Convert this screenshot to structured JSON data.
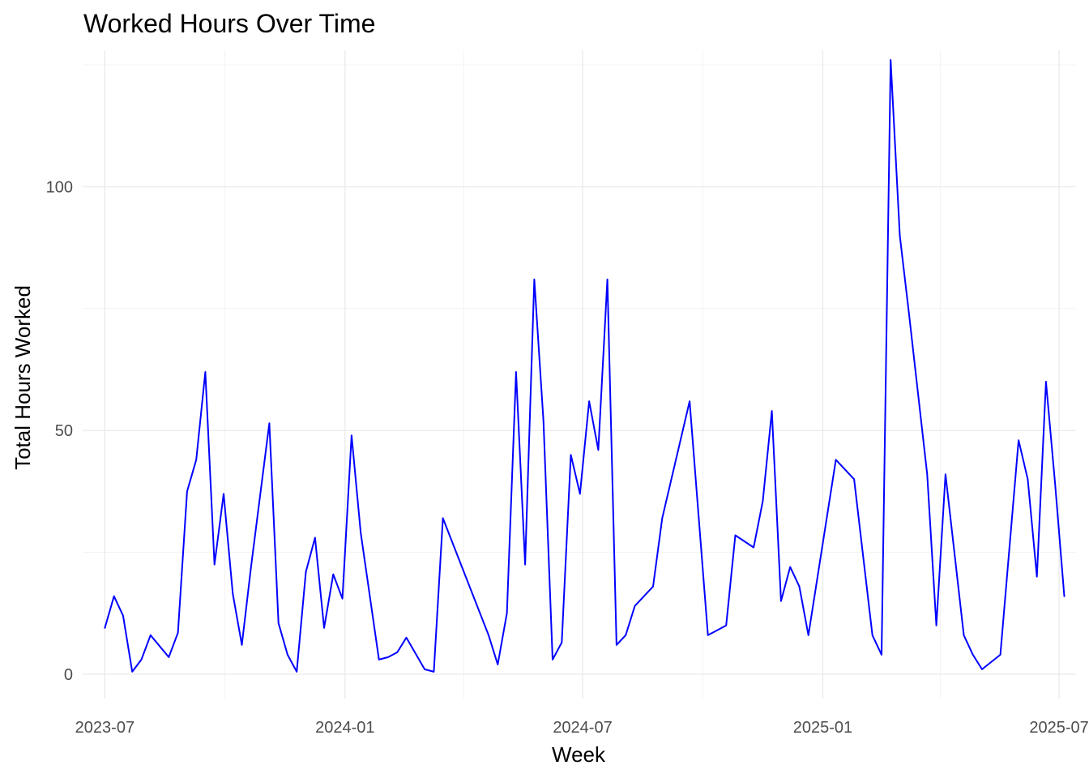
{
  "chart_data": {
    "type": "line",
    "title": "Worked Hours Over Time",
    "xlabel": "Week",
    "ylabel": "Total Hours Worked",
    "x_axis_type": "date",
    "xlim": [
      "2023-06-14",
      "2025-07-14"
    ],
    "ylim": [
      -5,
      128
    ],
    "x_ticks": [
      {
        "date": "2023-07-01",
        "label": "2023-07"
      },
      {
        "date": "2024-01-01",
        "label": "2024-01"
      },
      {
        "date": "2024-07-01",
        "label": "2024-07"
      },
      {
        "date": "2025-01-01",
        "label": "2025-01"
      },
      {
        "date": "2025-07-01",
        "label": "2025-07"
      }
    ],
    "x_minor_ticks": [
      "2023-10-01",
      "2024-04-01",
      "2024-10-01",
      "2025-04-01"
    ],
    "y_ticks": [
      0,
      50,
      100
    ],
    "y_minor_ticks": [
      25,
      75,
      125
    ],
    "grid": true,
    "line_color": "#0000ff",
    "series": [
      {
        "x": [
          "2023-07-01",
          "2023-07-08",
          "2023-07-15",
          "2023-07-22",
          "2023-07-29",
          "2023-08-05",
          "2023-08-19",
          "2023-08-26",
          "2023-09-02",
          "2023-09-09",
          "2023-09-16",
          "2023-09-23",
          "2023-09-30",
          "2023-10-07",
          "2023-10-14",
          "2023-10-21",
          "2023-11-04",
          "2023-11-11",
          "2023-11-18",
          "2023-11-25",
          "2023-12-02",
          "2023-12-09",
          "2023-12-16",
          "2023-12-23",
          "2023-12-30",
          "2024-01-06",
          "2024-01-13",
          "2024-01-27",
          "2024-02-03",
          "2024-02-10",
          "2024-02-17",
          "2024-03-02",
          "2024-03-09",
          "2024-03-16",
          "2024-04-20",
          "2024-04-27",
          "2024-05-04",
          "2024-05-11",
          "2024-05-18",
          "2024-05-25",
          "2024-06-01",
          "2024-06-08",
          "2024-06-15",
          "2024-06-22",
          "2024-06-29",
          "2024-07-06",
          "2024-07-13",
          "2024-07-20",
          "2024-07-27",
          "2024-08-03",
          "2024-08-10",
          "2024-08-24",
          "2024-08-31",
          "2024-09-21",
          "2024-10-05",
          "2024-10-19",
          "2024-10-26",
          "2024-11-09",
          "2024-11-16",
          "2024-11-23",
          "2024-11-30",
          "2024-12-07",
          "2024-12-14",
          "2024-12-21",
          "2025-01-11",
          "2025-01-25",
          "2025-02-01",
          "2025-02-08",
          "2025-02-15",
          "2025-02-22",
          "2025-03-01",
          "2025-03-08",
          "2025-03-22",
          "2025-03-29",
          "2025-04-05",
          "2025-04-19",
          "2025-04-26",
          "2025-05-03",
          "2025-05-10",
          "2025-05-17",
          "2025-05-31",
          "2025-06-07",
          "2025-06-14",
          "2025-06-21",
          "2025-06-28",
          "2025-07-05"
        ],
        "y": [
          9.5,
          16,
          12,
          0.5,
          3,
          8,
          3.5,
          8.5,
          37.5,
          44,
          62,
          22.5,
          37,
          16.5,
          6,
          22,
          51.5,
          10.5,
          4,
          0.5,
          21,
          28,
          9.5,
          20.5,
          15.5,
          49,
          29,
          3,
          3.5,
          4.5,
          7.5,
          1,
          0.5,
          32,
          8,
          2,
          12.5,
          62,
          22.5,
          81,
          52,
          3,
          6.5,
          45,
          37,
          56,
          46,
          81,
          6,
          8,
          14,
          18,
          32,
          56,
          8,
          10,
          28.5,
          26,
          35.5,
          54,
          15,
          22,
          18,
          8,
          44,
          40,
          24,
          8,
          4,
          126,
          90,
          74,
          41,
          10,
          41,
          8,
          4,
          1,
          2.5,
          4,
          48,
          40,
          20,
          60,
          39,
          16
        ]
      }
    ]
  }
}
